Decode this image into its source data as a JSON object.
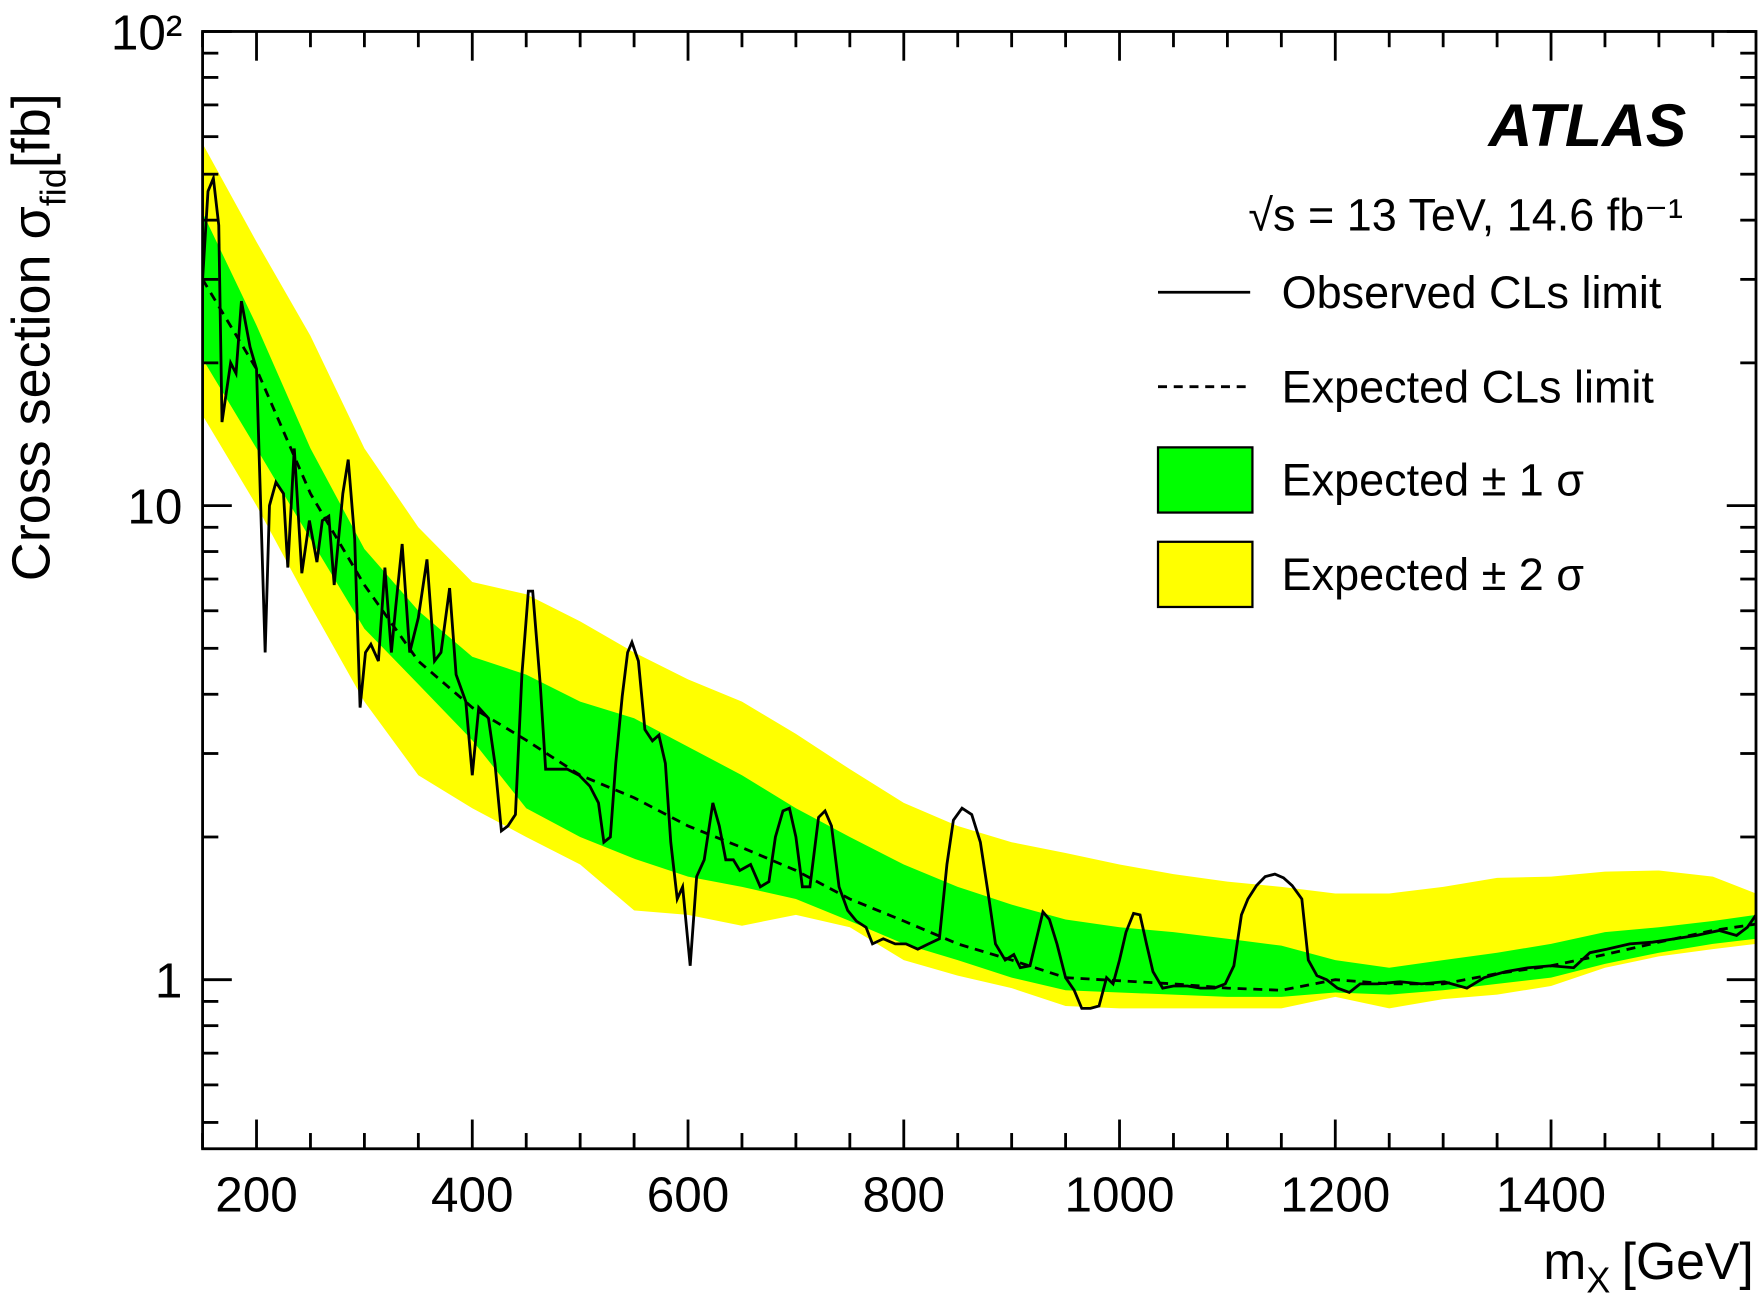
{
  "chart_data": {
    "type": "limit",
    "annotations": {
      "experiment": "ATLAS",
      "energy": "√s = 13 TeV, 14.6 fb⁻¹"
    },
    "ylabel": {
      "main": "Cross section σ",
      "sub": "fid",
      "unit": "[fb]"
    },
    "xlabel": {
      "main": "m",
      "sub": "X",
      "unit": "[GeV]"
    },
    "xlim": [
      150,
      1590
    ],
    "ylim": [
      0.44,
      100
    ],
    "log_y": true,
    "xticks": [
      200,
      400,
      600,
      800,
      1000,
      1200,
      1400
    ],
    "xminor": [
      150,
      250,
      300,
      350,
      450,
      500,
      550,
      650,
      700,
      750,
      850,
      900,
      950,
      1050,
      1100,
      1150,
      1250,
      1300,
      1350,
      1450,
      1500,
      1550
    ],
    "yticks": [
      1,
      10,
      {
        "value": 100,
        "label": "10²"
      }
    ],
    "yminor": [
      0.5,
      0.6,
      0.7,
      0.8,
      0.9,
      2,
      3,
      4,
      5,
      6,
      7,
      8,
      9,
      20,
      30,
      40,
      50,
      60,
      70,
      80,
      90
    ],
    "x": [
      150,
      200,
      250,
      300,
      350,
      400,
      450,
      500,
      550,
      600,
      650,
      700,
      750,
      800,
      850,
      900,
      950,
      1000,
      1050,
      1100,
      1150,
      1200,
      1250,
      1300,
      1350,
      1400,
      1450,
      1500,
      1550,
      1590
    ],
    "bands": [
      {
        "name": "Expected ± 2 σ",
        "color": "#ffff00",
        "upper": [
          58,
          36,
          22.8,
          13.2,
          9.0,
          6.9,
          6.5,
          5.7,
          4.9,
          4.3,
          3.86,
          3.3,
          2.78,
          2.36,
          2.11,
          1.95,
          1.85,
          1.75,
          1.67,
          1.61,
          1.57,
          1.52,
          1.52,
          1.57,
          1.64,
          1.65,
          1.69,
          1.7,
          1.65,
          1.52
        ],
        "lower": [
          15.5,
          10.0,
          6.15,
          3.86,
          2.7,
          2.3,
          2.0,
          1.75,
          1.4,
          1.37,
          1.3,
          1.37,
          1.29,
          1.1,
          1.02,
          0.96,
          0.88,
          0.87,
          0.87,
          0.87,
          0.87,
          0.92,
          0.87,
          0.91,
          0.93,
          0.97,
          1.06,
          1.12,
          1.16,
          1.19
        ]
      },
      {
        "name": "Expected ± 1 σ",
        "color": "#00ff00",
        "upper": [
          41.5,
          24,
          13.2,
          8.1,
          6.0,
          4.8,
          4.4,
          3.86,
          3.56,
          3.1,
          2.7,
          2.3,
          2.0,
          1.75,
          1.57,
          1.44,
          1.34,
          1.29,
          1.26,
          1.22,
          1.18,
          1.1,
          1.06,
          1.1,
          1.14,
          1.19,
          1.26,
          1.29,
          1.33,
          1.37
        ],
        "lower": [
          20.4,
          13.2,
          8.5,
          5.5,
          4.2,
          3.2,
          2.3,
          2.0,
          1.8,
          1.65,
          1.57,
          1.48,
          1.33,
          1.19,
          1.1,
          1.01,
          0.95,
          0.94,
          0.93,
          0.92,
          0.92,
          0.94,
          0.93,
          0.95,
          0.98,
          1.01,
          1.08,
          1.14,
          1.19,
          1.22
        ]
      }
    ],
    "series": [
      {
        "name": "Observed CLs limit",
        "color": "#000000",
        "style": "solid",
        "x": [
          150,
          155,
          160,
          165,
          168,
          176,
          181,
          186,
          194,
          200,
          208,
          212,
          218,
          225,
          229,
          235,
          242,
          249,
          256,
          261,
          267,
          272,
          280,
          285,
          291,
          296,
          301,
          306,
          313,
          319,
          325,
          329,
          335,
          342,
          350,
          358,
          365,
          371,
          379,
          385,
          394,
          400,
          406,
          415,
          421,
          427,
          433,
          440,
          446,
          452,
          456,
          463,
          468,
          478,
          488,
          499,
          509,
          517,
          522,
          528,
          533,
          539,
          544,
          548,
          554,
          560,
          567,
          573,
          579,
          584,
          590,
          595,
          602,
          608,
          615,
          623,
          629,
          635,
          642,
          648,
          658,
          667,
          675,
          681,
          688,
          694,
          700,
          706,
          713,
          721,
          727,
          733,
          740,
          748,
          756,
          765,
          771,
          781,
          792,
          802,
          813,
          823,
          833,
          840,
          846,
          854,
          863,
          871,
          879,
          885,
          894,
          902,
          908,
          917,
          923,
          929,
          935,
          942,
          950,
          958,
          965,
          973,
          981,
          988,
          994,
          1000,
          1006,
          1013,
          1019,
          1025,
          1031,
          1040,
          1050,
          1063,
          1075,
          1088,
          1098,
          1106,
          1113,
          1119,
          1127,
          1135,
          1144,
          1152,
          1160,
          1169,
          1175,
          1183,
          1192,
          1202,
          1213,
          1223,
          1239,
          1260,
          1280,
          1301,
          1322,
          1338,
          1358,
          1379,
          1400,
          1421,
          1436,
          1452,
          1473,
          1494,
          1515,
          1535,
          1556,
          1572,
          1582,
          1590
        ],
        "values": [
          30,
          46,
          49,
          39,
          15,
          20,
          19,
          27,
          21.6,
          19.4,
          4.9,
          10.0,
          11.2,
          10.6,
          7.4,
          13.2,
          7.2,
          9.3,
          7.6,
          9.3,
          9.5,
          6.8,
          10.6,
          12.5,
          8.5,
          3.75,
          4.9,
          5.1,
          4.7,
          7.4,
          4.9,
          6.1,
          8.3,
          4.9,
          5.8,
          7.7,
          4.7,
          4.9,
          6.7,
          4.4,
          3.86,
          2.7,
          3.75,
          3.56,
          2.86,
          2.06,
          2.11,
          2.23,
          4.4,
          6.6,
          6.6,
          4.2,
          2.78,
          2.78,
          2.78,
          2.7,
          2.56,
          2.36,
          1.95,
          2.0,
          2.86,
          3.96,
          4.9,
          5.15,
          4.7,
          3.37,
          3.19,
          3.28,
          2.86,
          1.95,
          1.48,
          1.57,
          1.07,
          1.65,
          1.79,
          2.36,
          2.11,
          1.79,
          1.79,
          1.7,
          1.75,
          1.57,
          1.61,
          2.0,
          2.27,
          2.3,
          2.0,
          1.57,
          1.57,
          2.2,
          2.27,
          2.11,
          1.57,
          1.4,
          1.33,
          1.29,
          1.19,
          1.22,
          1.19,
          1.19,
          1.16,
          1.19,
          1.22,
          1.75,
          2.17,
          2.3,
          2.23,
          1.95,
          1.48,
          1.19,
          1.1,
          1.13,
          1.06,
          1.07,
          1.22,
          1.39,
          1.34,
          1.19,
          1.01,
          0.95,
          0.87,
          0.87,
          0.88,
          1.01,
          0.98,
          1.1,
          1.26,
          1.38,
          1.37,
          1.19,
          1.04,
          0.96,
          0.97,
          0.97,
          0.96,
          0.96,
          0.98,
          1.07,
          1.37,
          1.48,
          1.58,
          1.65,
          1.67,
          1.64,
          1.58,
          1.48,
          1.1,
          1.02,
          1.0,
          0.96,
          0.94,
          0.98,
          0.98,
          0.99,
          0.98,
          0.99,
          0.96,
          1.01,
          1.04,
          1.06,
          1.07,
          1.06,
          1.14,
          1.16,
          1.19,
          1.2,
          1.22,
          1.24,
          1.27,
          1.24,
          1.29,
          1.37
        ]
      },
      {
        "name": "Expected CLs limit",
        "color": "#000000",
        "style": "dashed",
        "values": [
          30,
          19.4,
          10.6,
          6.8,
          4.7,
          3.75,
          3.2,
          2.7,
          2.42,
          2.11,
          1.9,
          1.7,
          1.48,
          1.33,
          1.19,
          1.1,
          1.01,
          0.995,
          0.98,
          0.96,
          0.95,
          1.0,
          0.98,
          0.98,
          1.03,
          1.07,
          1.13,
          1.2,
          1.27,
          1.31
        ]
      }
    ]
  }
}
